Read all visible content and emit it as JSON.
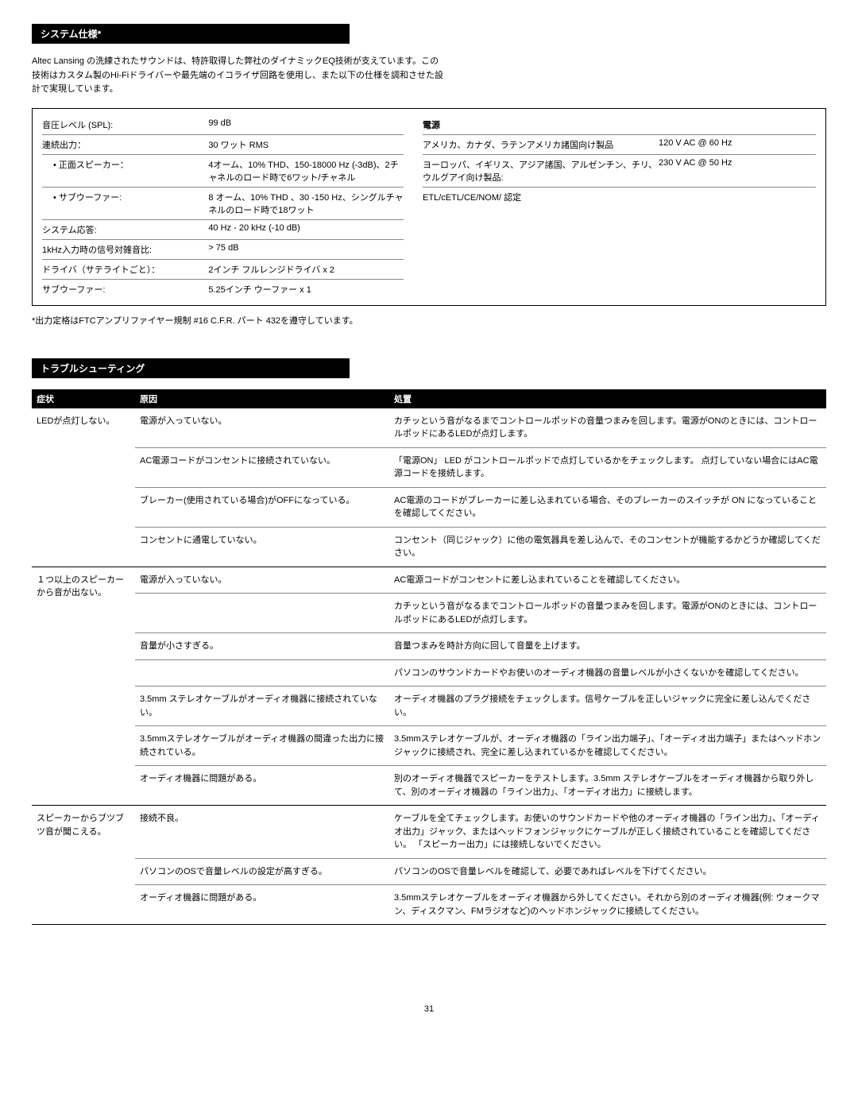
{
  "section1": {
    "title": "システム仕様*",
    "intro": "Altec Lansing の洗練されたサウンドは、特許取得した弊社のダイナミックEQ技術が支えています。この技術はカスタム製のHi-Fiドライバーや最先端のイコライザ回路を使用し、また以下の仕様を調和させた設計で実現しています。",
    "specs_left": [
      {
        "label": "音圧レベル (SPL):",
        "value": "99 dB"
      },
      {
        "label": "連続出力：",
        "value": "30 ワット RMS"
      },
      {
        "label": "• 正面スピーカー：",
        "value": "4オーム、10% THD、150-18000 Hz (-3dB)、2チャネルのロード時で6ワット/チャネル",
        "indent": true
      },
      {
        "label": "• サブウーファー:",
        "value": "8 オーム、10% THD 、30 -150 Hz、シングルチャネルのロード時で18ワット",
        "indent": true
      },
      {
        "label": "システム応答:",
        "value": "40 Hz - 20 kHz (-10 dB)"
      },
      {
        "label": "1kHz入力時の信号対雑音比:",
        "value": "> 75 dB"
      },
      {
        "label": "ドライバ（サテライトごと）：",
        "value": "2インチ フルレンジドライバ x 2"
      },
      {
        "label": "サブウーファー:",
        "value": "5.25インチ ウーファー x 1"
      }
    ],
    "right_header": "電源",
    "specs_right": [
      {
        "label": "アメリカ、カナダ、ラテンアメリカ諸国向け製品",
        "value": "120 V AC @ 60 Hz"
      },
      {
        "label": "ヨーロッパ、イギリス、アジア諸国、アルゼンチン、チリ、ウルグアイ向け製品:",
        "value": "230 V AC @ 50 Hz"
      },
      {
        "label": "ETL/cETL/CE/NOM/ 認定",
        "value": ""
      }
    ],
    "footnote": "*出力定格はFTCアンプリファイヤー規制 #16 C.F.R. パート 432を遵守しています。"
  },
  "section2": {
    "title": "トラブルシューティング",
    "headers": {
      "symptom": "症状",
      "cause": "原因",
      "action": "処置"
    },
    "groups": [
      {
        "symptom": "LEDが点灯しない。",
        "rows": [
          {
            "cause": "電源が入っていない。",
            "action": "カチッという音がなるまでコントロールポッドの音量つまみを回します。電源がONのときには、コントロールポッドにあるLEDが点灯します。"
          },
          {
            "cause": "AC電源コードがコンセントに接続されていない。",
            "action": "「電源ON」 LED がコントロールポッドで点灯しているかをチェックします。 点灯していない場合にはAC電源コードを接続します。"
          },
          {
            "cause": "ブレーカー(使用されている場合)がOFFになっている。",
            "action": "AC電源のコードがブレーカーに差し込まれている場合、そのブレーカーのスイッチが ON になっていることを確認してください。"
          },
          {
            "cause": "コンセントに通電していない。",
            "action": "コンセント（同じジャック）に他の電気器具を差し込んで、そのコンセントが機能するかどうか確認してください。"
          }
        ]
      },
      {
        "symptom": "１つ以上のスピーカーから音が出ない。",
        "rows": [
          {
            "cause": "電源が入っていない。",
            "action": "AC電源コードがコンセントに差し込まれていることを確認してください。"
          },
          {
            "cause": "",
            "action": "カチッという音がなるまでコントロールポッドの音量つまみを回します。電源がONのときには、コントロールポッドにあるLEDが点灯します。"
          },
          {
            "cause": "音量が小さすぎる。",
            "action": "音量つまみを時計方向に回して音量を上げます。"
          },
          {
            "cause": "",
            "action": "パソコンのサウンドカードやお使いのオーディオ機器の音量レベルが小さくないかを確認してください。"
          },
          {
            "cause": "3.5mm ステレオケーブルがオーディオ機器に接続されていない。",
            "action": "オーディオ機器のプラグ接続をチェックします。信号ケーブルを正しいジャックに完全に差し込んでください。"
          },
          {
            "cause": "3.5mmステレオケーブルがオーディオ機器の間違った出力に接続されている。",
            "action": "3.5mmステレオケーブルが、オーディオ機器の「ライン出力端子」、「オーディオ出力端子」またはヘッドホンジャックに接続され、完全に差し込まれているかを確認してください。"
          },
          {
            "cause": "オーディオ機器に問題がある。",
            "action": "別のオーディオ機器でスピーカーをテストします。3.5mm ステレオケーブルをオーディオ機器から取り外して、別のオーディオ機器の「ライン出力」、「オーディオ出力」に接続します。"
          }
        ]
      },
      {
        "symptom": "スピーカーからブツブツ音が聞こえる。",
        "rows": [
          {
            "cause": "接続不良。",
            "action": "ケーブルを全てチェックします。お使いのサウンドカードや他のオーディオ機器の「ライン出力」、「オーディオ出力」ジャック、またはヘッドフォンジャックにケーブルが正しく接続されていることを確認してください。 「スピーカー出力」には接続しないでください。"
          },
          {
            "cause": "パソコンのOSで音量レベルの設定が高すぎる。",
            "action": "パソコンのOSで音量レベルを確認して、必要であればレベルを下げてください。"
          },
          {
            "cause": "オーディオ機器に問題がある。",
            "action": "3.5mmステレオケーブルをオーディオ機器から外してください。それから別のオーディオ機器(例: ウォークマン、ディスクマン、FMラジオなど)のヘッドホンジャックに接続してください。"
          }
        ]
      }
    ]
  },
  "page_number": "31"
}
